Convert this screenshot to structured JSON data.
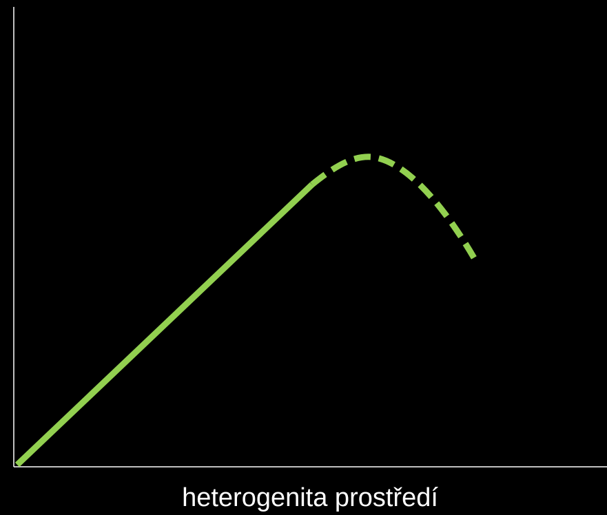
{
  "x_axis": {
    "label": "heterogenita prostředí"
  }
}
